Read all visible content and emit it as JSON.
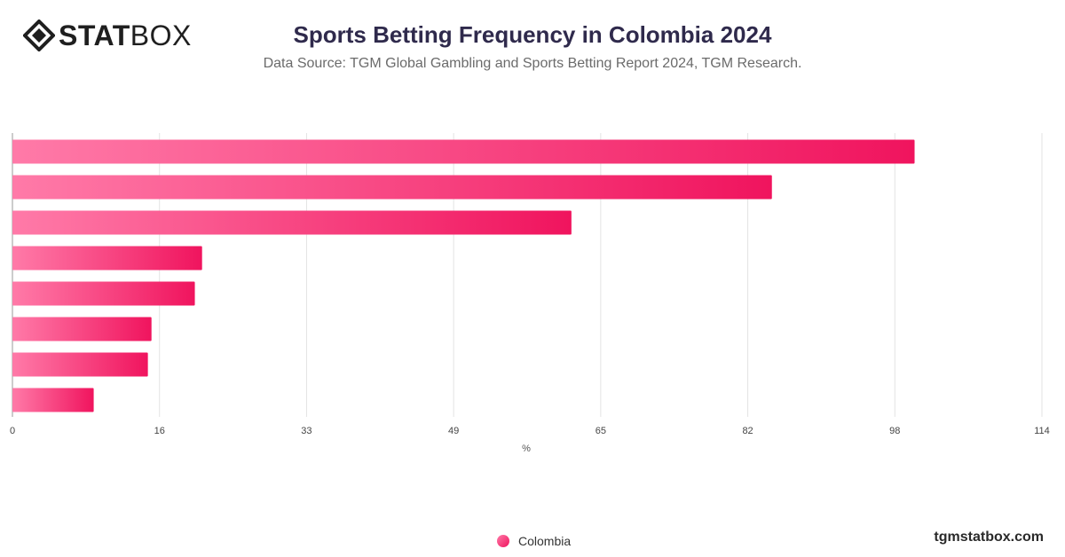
{
  "brand": {
    "logo_strong": "STAT",
    "logo_light": "BOX",
    "website": "tgmstatbox.com"
  },
  "header": {
    "title": "Sports Betting Frequency in Colombia 2024",
    "subtitle": "Data Source: TGM Global Gambling and Sports Betting Report 2024, TGM Research."
  },
  "colors": {
    "bar_start": "#ff7aa8",
    "bar_end": "#f0145e",
    "grid": "#e3e3e3",
    "axis_text": "#444444"
  },
  "chart_data": {
    "type": "bar",
    "orientation": "horizontal",
    "title": "Sports Betting Frequency in Colombia 2024",
    "xlabel": "%",
    "xlim": [
      0,
      114
    ],
    "x_ticks": [
      "0",
      "16",
      "33",
      "49",
      "65",
      "82",
      "98",
      "114"
    ],
    "grid": true,
    "legend_position": "bottom",
    "series": [
      {
        "name": "Colombia",
        "values": [
          99.9,
          84.1,
          61.9,
          21.0,
          20.2,
          15.4,
          15.0,
          9.0
        ]
      }
    ]
  }
}
